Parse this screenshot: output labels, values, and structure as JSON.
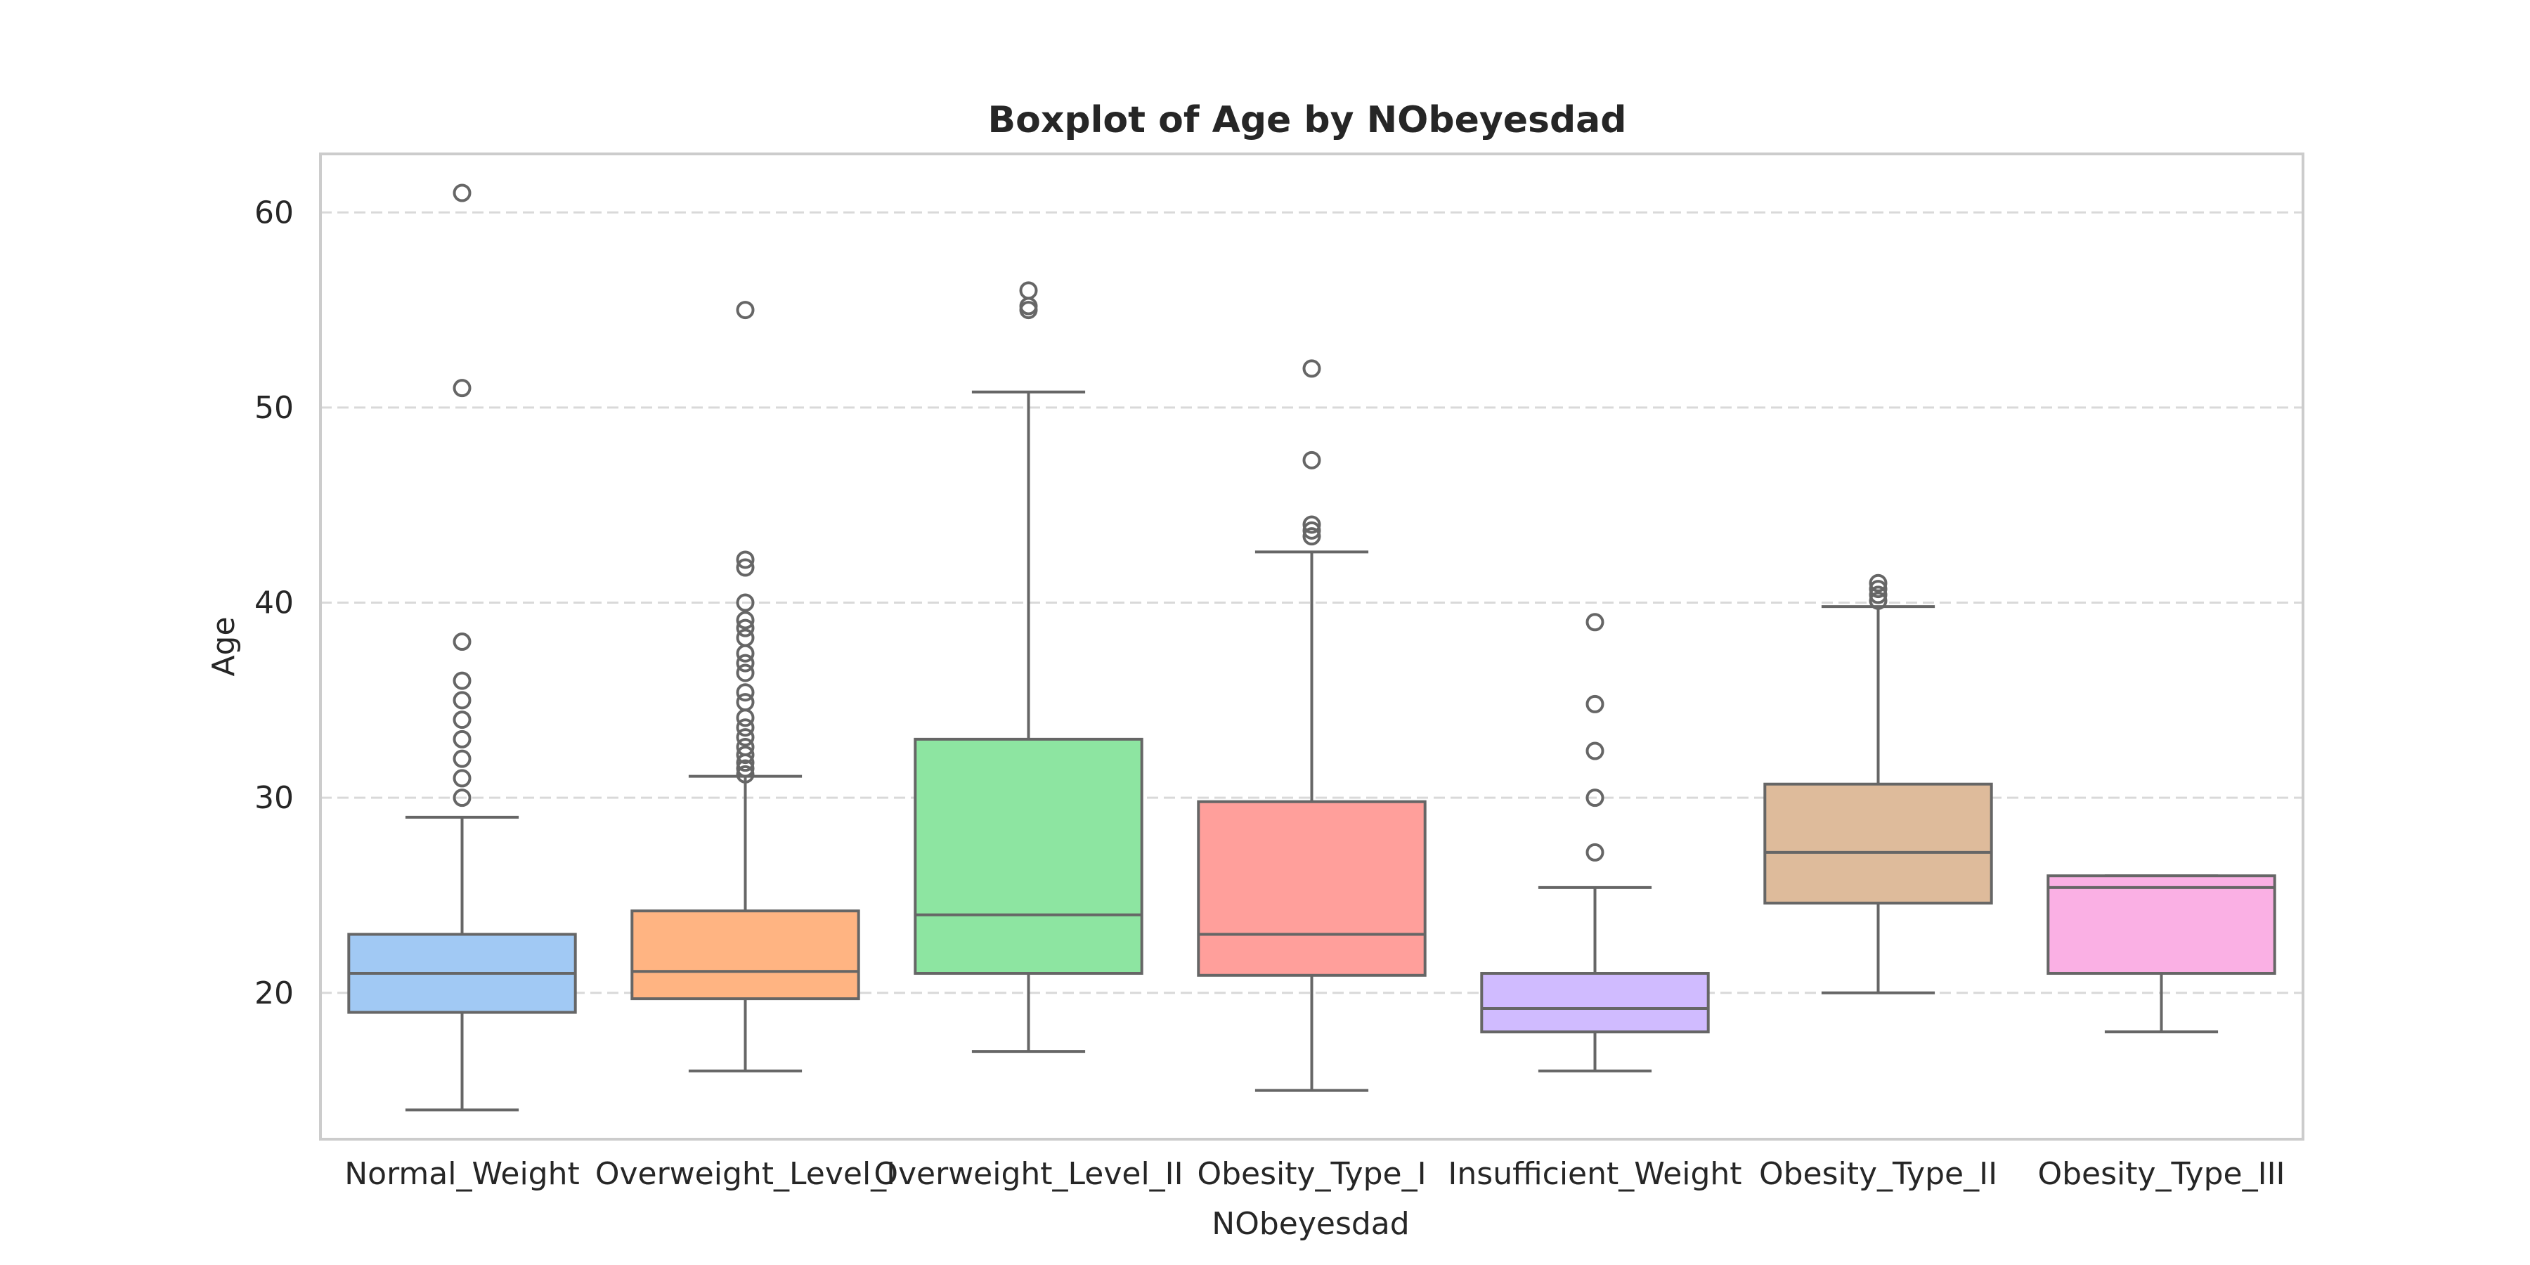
{
  "chart_data": {
    "type": "box",
    "title": "Boxplot of Age by NObeyesdad",
    "xlabel": "NObeyesdad",
    "ylabel": "Age",
    "ylim": [
      12.5,
      63
    ],
    "yticks": [
      20,
      30,
      40,
      50,
      60
    ],
    "grid": "horizontal-dashed",
    "categories": [
      "Normal_Weight",
      "Overweight_Level_I",
      "Overweight_Level_II",
      "Obesity_Type_I",
      "Insufficient_Weight",
      "Obesity_Type_II",
      "Obesity_Type_III"
    ],
    "boxes": [
      {
        "category": "Normal_Weight",
        "color": "#a1c9f4",
        "whislo": 14,
        "q1": 19,
        "med": 21,
        "q3": 23,
        "whishi": 29,
        "fliers": [
          30,
          31,
          32,
          33,
          34,
          35,
          36,
          38,
          51,
          61
        ]
      },
      {
        "category": "Overweight_Level_I",
        "color": "#ffb482",
        "whislo": 16,
        "q1": 19.7,
        "med": 21.1,
        "q3": 24.2,
        "whishi": 31.1,
        "fliers": [
          31.2,
          31.5,
          31.8,
          32.2,
          32.6,
          33.1,
          33.6,
          34.1,
          34.9,
          35.4,
          36.4,
          36.9,
          37.4,
          38.2,
          38.7,
          39.1,
          40,
          41.8,
          42.2,
          55
        ]
      },
      {
        "category": "Overweight_Level_II",
        "color": "#8de5a1",
        "whislo": 17,
        "q1": 21,
        "med": 24,
        "q3": 33,
        "whishi": 50.8,
        "fliers": [
          55,
          55.2,
          56
        ]
      },
      {
        "category": "Obesity_Type_I",
        "color": "#ff9f9b",
        "whislo": 15,
        "q1": 20.9,
        "med": 23,
        "q3": 29.8,
        "whishi": 42.6,
        "fliers": [
          43.4,
          43.7,
          44,
          47.3,
          52
        ]
      },
      {
        "category": "Insufficient_Weight",
        "color": "#d0bbff",
        "whislo": 16,
        "q1": 18,
        "med": 19.2,
        "q3": 21,
        "whishi": 25.4,
        "fliers": [
          27.2,
          30,
          32.4,
          34.8,
          39
        ]
      },
      {
        "category": "Obesity_Type_II",
        "color": "#debb9b",
        "whislo": 20,
        "q1": 24.6,
        "med": 27.2,
        "q3": 30.7,
        "whishi": 39.8,
        "fliers": [
          40.1,
          40.4,
          40.7,
          41
        ]
      },
      {
        "category": "Obesity_Type_III",
        "color": "#fab0e4",
        "whislo": 18,
        "q1": 21,
        "med": 25.4,
        "q3": 26,
        "whishi": 26,
        "fliers": []
      }
    ]
  }
}
